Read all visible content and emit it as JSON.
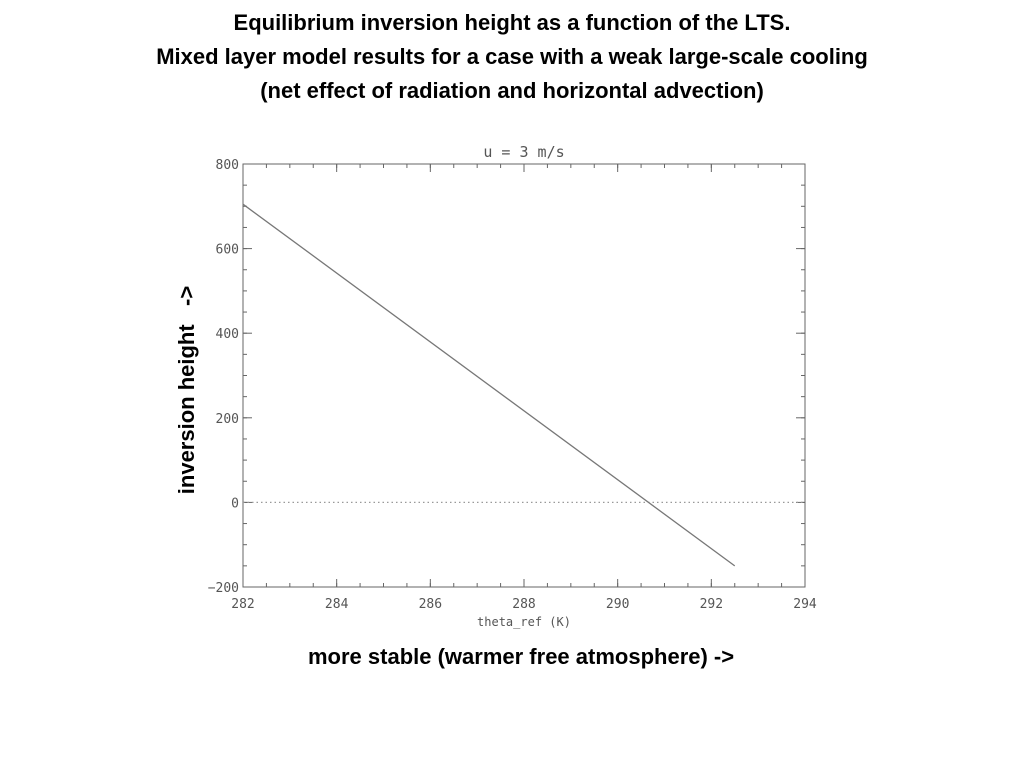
{
  "slide": {
    "title_lines": [
      "Equilibrium inversion height as a function of the LTS.",
      "Mixed layer model results for a case with a weak large-scale cooling",
      "(net effect of radiation and horizontal advection)"
    ],
    "y_annotation": "inversion height   ->",
    "x_annotation": "more stable (warmer free atmosphere) ->"
  },
  "colors": {
    "line": "#777777",
    "axis": "#666666",
    "text": "#555555",
    "zero_line": "#999999"
  },
  "chart_data": {
    "type": "line",
    "title": "u = 3 m/s",
    "xlabel": "theta_ref (K)",
    "ylabel": "",
    "xlim": [
      282,
      294
    ],
    "ylim": [
      -200,
      800
    ],
    "xticks": [
      282,
      284,
      286,
      288,
      290,
      292,
      294
    ],
    "yticks": [
      -200,
      0,
      200,
      400,
      600,
      800
    ],
    "ytick_labels": [
      "−200",
      "0",
      "200",
      "400",
      "600",
      "800"
    ],
    "grid": false,
    "series": [
      {
        "x": [
          282,
          292.5
        ],
        "y": [
          705,
          -150
        ]
      }
    ],
    "reference_lines": [
      {
        "orientation": "horizontal",
        "value": 0,
        "style": "dotted"
      }
    ]
  }
}
